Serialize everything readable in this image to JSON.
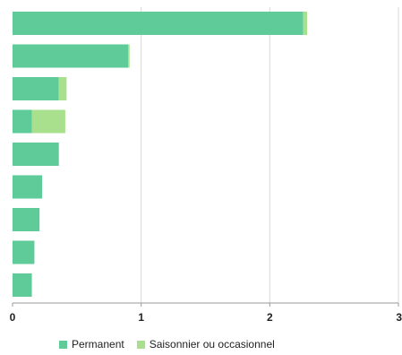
{
  "chart_data": {
    "type": "bar",
    "orientation": "horizontal",
    "stacked": true,
    "categories": [
      "",
      "",
      "",
      "",
      "",
      "",
      "",
      "",
      ""
    ],
    "series": [
      {
        "name": "Permanent",
        "values": [
          2.26,
          0.9,
          0.36,
          0.15,
          0.36,
          0.23,
          0.21,
          0.17,
          0.15
        ],
        "color": "#5ecb98"
      },
      {
        "name": "Saisonnier ou occasionnel",
        "values": [
          0.03,
          0.01,
          0.06,
          0.26,
          0.0,
          0.0,
          0.0,
          0.0,
          0.0
        ],
        "color": "#a9e08e"
      }
    ],
    "xlim": [
      0,
      3
    ],
    "xticks": [
      "0",
      "1",
      "2",
      "3"
    ],
    "grid": true,
    "legend": "bottom-left"
  }
}
